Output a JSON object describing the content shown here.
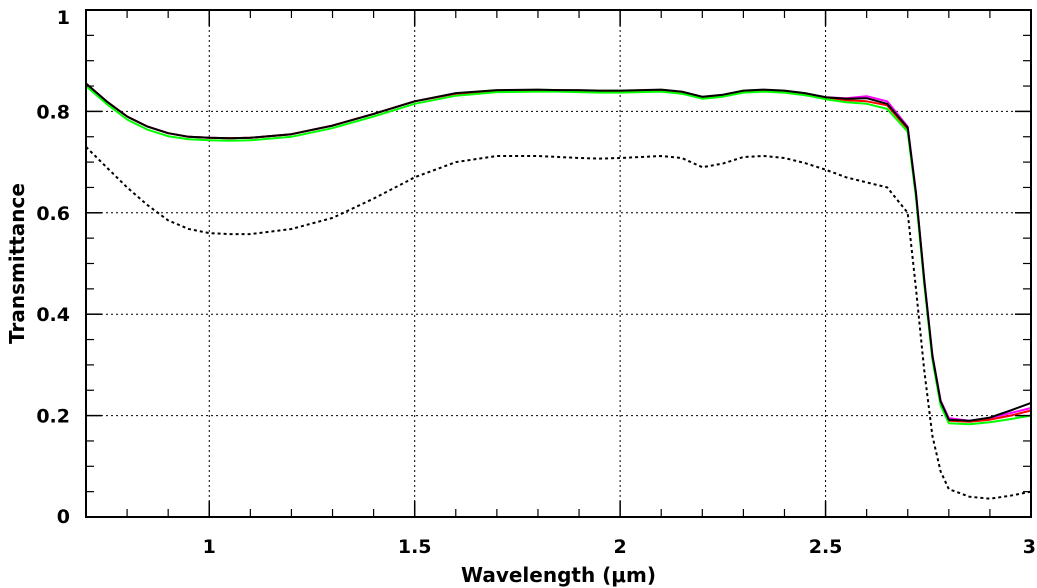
{
  "chart_data": {
    "type": "line",
    "title": "",
    "xlabel": "Wavelength (μm)",
    "ylabel": "Transmittance",
    "xlim": [
      0.7,
      3.0
    ],
    "ylim": [
      0,
      1
    ],
    "grid": true,
    "x_ticks": [
      1,
      1.5,
      2,
      2.5,
      3
    ],
    "x_tick_labels": [
      "1",
      "1.5",
      "2",
      "2.5",
      "3"
    ],
    "y_ticks": [
      0,
      0.2,
      0.4,
      0.6,
      0.8,
      1
    ],
    "y_tick_labels": [
      "0",
      "0.2",
      "0.4",
      "0.6",
      "0.8",
      "1"
    ],
    "series": [
      {
        "color": "#ff00ff",
        "style": "solid",
        "x": [
          0.7,
          0.75,
          0.8,
          0.85,
          0.9,
          0.95,
          1.0,
          1.05,
          1.1,
          1.2,
          1.3,
          1.4,
          1.5,
          1.6,
          1.7,
          1.8,
          1.85,
          1.9,
          1.95,
          2.0,
          2.1,
          2.15,
          2.2,
          2.25,
          2.3,
          2.35,
          2.4,
          2.45,
          2.5,
          2.55,
          2.6,
          2.65,
          2.7,
          2.72,
          2.74,
          2.76,
          2.78,
          2.8,
          2.85,
          2.9,
          2.95,
          3.0
        ],
        "y": [
          0.855,
          0.82,
          0.79,
          0.77,
          0.757,
          0.75,
          0.748,
          0.747,
          0.748,
          0.755,
          0.772,
          0.795,
          0.82,
          0.835,
          0.841,
          0.842,
          0.842,
          0.841,
          0.84,
          0.84,
          0.842,
          0.838,
          0.828,
          0.832,
          0.84,
          0.842,
          0.84,
          0.835,
          0.828,
          0.826,
          0.83,
          0.82,
          0.77,
          0.64,
          0.47,
          0.32,
          0.23,
          0.195,
          0.19,
          0.195,
          0.205,
          0.215
        ]
      },
      {
        "color": "#ff0000",
        "style": "solid",
        "x": [
          0.7,
          0.75,
          0.8,
          0.85,
          0.9,
          0.95,
          1.0,
          1.05,
          1.1,
          1.2,
          1.3,
          1.4,
          1.5,
          1.6,
          1.7,
          1.8,
          1.85,
          1.9,
          1.95,
          2.0,
          2.1,
          2.15,
          2.2,
          2.25,
          2.3,
          2.35,
          2.4,
          2.45,
          2.5,
          2.55,
          2.6,
          2.65,
          2.7,
          2.72,
          2.74,
          2.76,
          2.78,
          2.8,
          2.85,
          2.9,
          2.95,
          3.0
        ],
        "y": [
          0.855,
          0.82,
          0.79,
          0.77,
          0.757,
          0.75,
          0.748,
          0.747,
          0.748,
          0.755,
          0.772,
          0.795,
          0.82,
          0.835,
          0.841,
          0.842,
          0.842,
          0.841,
          0.84,
          0.84,
          0.842,
          0.838,
          0.828,
          0.832,
          0.84,
          0.842,
          0.84,
          0.835,
          0.828,
          0.822,
          0.82,
          0.812,
          0.765,
          0.635,
          0.465,
          0.315,
          0.225,
          0.19,
          0.188,
          0.192,
          0.2,
          0.21
        ]
      },
      {
        "color": "#00ff00",
        "style": "solid",
        "x": [
          0.7,
          0.75,
          0.8,
          0.85,
          0.9,
          0.95,
          1.0,
          1.05,
          1.1,
          1.2,
          1.3,
          1.4,
          1.5,
          1.6,
          1.7,
          1.8,
          1.85,
          1.9,
          1.95,
          2.0,
          2.1,
          2.15,
          2.2,
          2.25,
          2.3,
          2.35,
          2.4,
          2.45,
          2.5,
          2.55,
          2.6,
          2.65,
          2.7,
          2.72,
          2.74,
          2.76,
          2.78,
          2.8,
          2.85,
          2.9,
          2.95,
          3.0
        ],
        "y": [
          0.85,
          0.815,
          0.784,
          0.764,
          0.751,
          0.745,
          0.743,
          0.742,
          0.743,
          0.75,
          0.767,
          0.79,
          0.815,
          0.831,
          0.838,
          0.839,
          0.839,
          0.838,
          0.837,
          0.837,
          0.839,
          0.835,
          0.825,
          0.829,
          0.837,
          0.839,
          0.837,
          0.832,
          0.824,
          0.818,
          0.815,
          0.805,
          0.76,
          0.63,
          0.46,
          0.31,
          0.22,
          0.185,
          0.183,
          0.187,
          0.193,
          0.2
        ]
      },
      {
        "color": "#000000",
        "style": "solid",
        "x": [
          0.7,
          0.75,
          0.8,
          0.85,
          0.9,
          0.95,
          1.0,
          1.05,
          1.1,
          1.2,
          1.3,
          1.4,
          1.5,
          1.6,
          1.7,
          1.8,
          1.85,
          1.9,
          1.95,
          2.0,
          2.1,
          2.15,
          2.2,
          2.25,
          2.3,
          2.35,
          2.4,
          2.45,
          2.5,
          2.55,
          2.6,
          2.65,
          2.7,
          2.72,
          2.74,
          2.76,
          2.78,
          2.8,
          2.85,
          2.9,
          2.95,
          3.0
        ],
        "y": [
          0.855,
          0.82,
          0.79,
          0.77,
          0.757,
          0.75,
          0.748,
          0.747,
          0.748,
          0.755,
          0.772,
          0.795,
          0.82,
          0.836,
          0.842,
          0.843,
          0.842,
          0.842,
          0.841,
          0.841,
          0.843,
          0.839,
          0.829,
          0.833,
          0.841,
          0.843,
          0.841,
          0.836,
          0.828,
          0.825,
          0.826,
          0.815,
          0.768,
          0.638,
          0.468,
          0.318,
          0.228,
          0.192,
          0.19,
          0.196,
          0.21,
          0.225
        ]
      },
      {
        "color": "#000000",
        "style": "dotted",
        "x": [
          0.7,
          0.75,
          0.8,
          0.85,
          0.9,
          0.95,
          1.0,
          1.05,
          1.1,
          1.2,
          1.3,
          1.4,
          1.5,
          1.6,
          1.7,
          1.8,
          1.85,
          1.9,
          1.95,
          2.0,
          2.1,
          2.15,
          2.2,
          2.25,
          2.3,
          2.35,
          2.4,
          2.45,
          2.5,
          2.55,
          2.6,
          2.65,
          2.7,
          2.72,
          2.74,
          2.76,
          2.78,
          2.8,
          2.85,
          2.9,
          2.95,
          3.0
        ],
        "y": [
          0.73,
          0.69,
          0.65,
          0.615,
          0.585,
          0.568,
          0.56,
          0.558,
          0.558,
          0.568,
          0.59,
          0.628,
          0.67,
          0.7,
          0.712,
          0.712,
          0.71,
          0.708,
          0.707,
          0.708,
          0.712,
          0.708,
          0.69,
          0.697,
          0.71,
          0.712,
          0.708,
          0.698,
          0.685,
          0.67,
          0.66,
          0.65,
          0.6,
          0.45,
          0.29,
          0.16,
          0.09,
          0.055,
          0.04,
          0.036,
          0.042,
          0.05
        ]
      }
    ]
  }
}
